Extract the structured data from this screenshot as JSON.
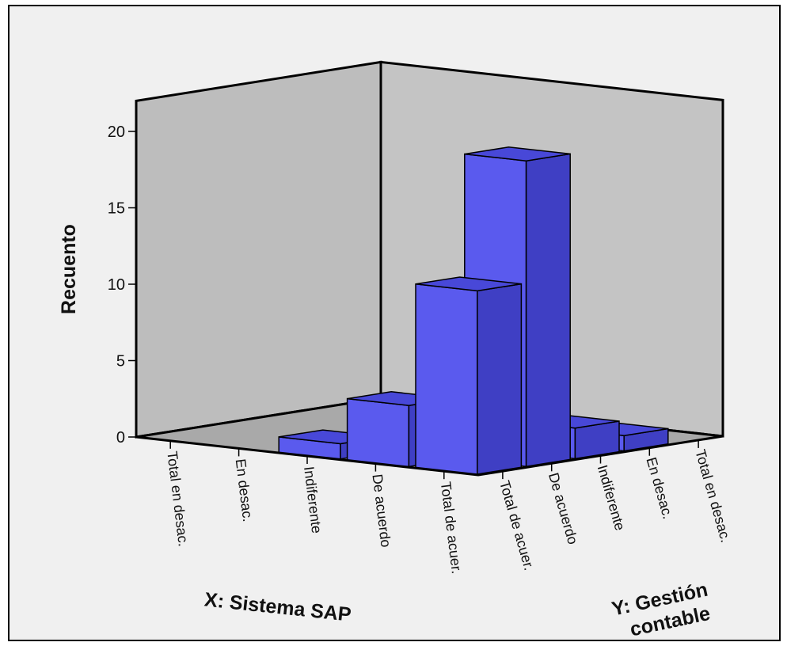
{
  "chart_data": {
    "type": "bar",
    "subtype": "3d-bar",
    "ylabel": "Recuento",
    "xlabel": "X: Sistema SAP",
    "zlabel_line1": "Y: Gestión",
    "zlabel_line2": "contable",
    "yticks": [
      "0",
      "5",
      "10",
      "15",
      "20"
    ],
    "ylim": [
      0,
      22
    ],
    "x_categories": [
      "Total en desac.",
      "En desac.",
      "Indiferente",
      "De acuerdo",
      "Total de acuer."
    ],
    "y_categories": [
      "Total de acuer.",
      "De acuerdo",
      "Indiferente",
      "En desac.",
      "Total en desac."
    ],
    "bars": [
      {
        "x": "Indiferente",
        "y": "Total de acuer.",
        "value": 1
      },
      {
        "x": "De acuerdo",
        "y": "Total de acuer.",
        "value": 4
      },
      {
        "x": "Total de acuer.",
        "y": "Total de acuer.",
        "value": 12
      },
      {
        "x": "Total de acuer.",
        "y": "De acuerdo",
        "value": 20
      },
      {
        "x": "Total de acuer.",
        "y": "Indiferente",
        "value": 2
      },
      {
        "x": "Total de acuer.",
        "y": "En desac.",
        "value": 1
      }
    ],
    "colors": {
      "bar_front": "#5a5aee",
      "bar_side": "#3f3fc4",
      "bar_top": "#4848d8",
      "wall": "#bdbdbd",
      "floor": "#a9a9a9"
    }
  }
}
